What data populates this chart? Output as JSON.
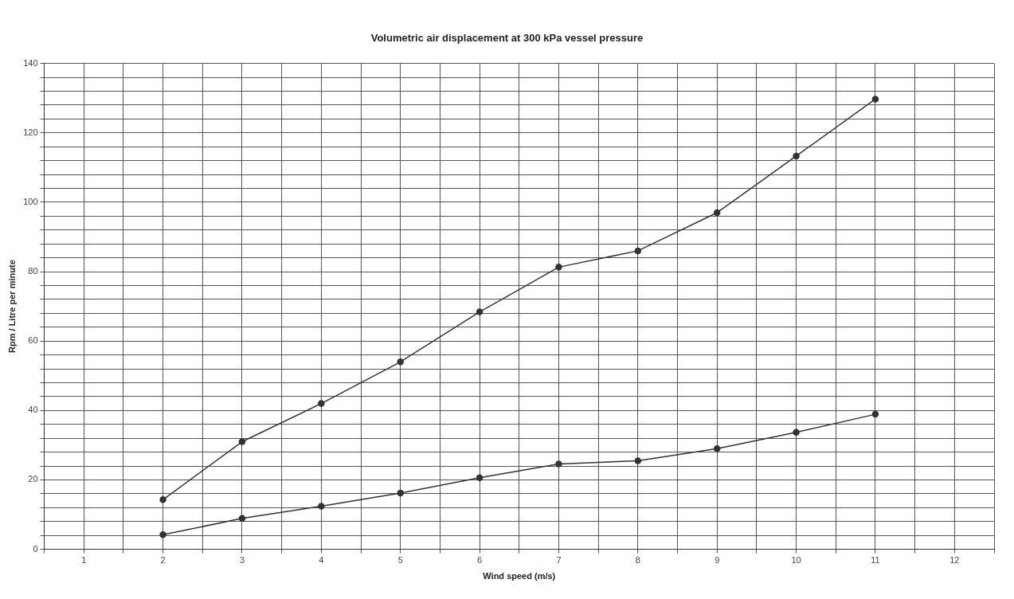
{
  "chart_data": {
    "type": "line",
    "title": "Volumetric air displacement at 300 kPa vessel pressure",
    "xlabel": "Wind speed (m/s)",
    "ylabel": "Rpm / Litre per minute",
    "x": [
      2,
      3,
      4,
      5,
      6,
      7,
      8,
      9,
      10,
      11
    ],
    "series": [
      {
        "color": "#333333",
        "values": [
          14.3,
          31,
          42,
          54,
          68.4,
          81.3,
          86,
          97,
          113.3,
          129.7
        ]
      },
      {
        "color": "#333333",
        "values": [
          4.2,
          8.9,
          12.4,
          16.2,
          20.6,
          24.6,
          25.5,
          29,
          33.7,
          38.9
        ]
      }
    ],
    "xlim": [
      0.5,
      12.5
    ],
    "xticks": [
      {
        "value": 0.5,
        "label": null
      },
      1,
      {
        "value": 1.5,
        "label": null
      },
      2,
      {
        "value": 2.5,
        "label": null
      },
      3,
      {
        "value": 3.5,
        "label": null
      },
      4,
      {
        "value": 4.5,
        "label": null
      },
      5,
      {
        "value": 5.5,
        "label": null
      },
      6,
      {
        "value": 6.5,
        "label": null
      },
      7,
      {
        "value": 7.5,
        "label": null
      },
      8,
      {
        "value": 8.5,
        "label": null
      },
      9,
      {
        "value": 9.5,
        "label": null
      },
      10,
      {
        "value": 10.5,
        "label": null
      },
      11,
      {
        "value": 11.5,
        "label": null
      },
      12,
      {
        "value": 12.5,
        "label": null
      }
    ],
    "ylim": [
      0,
      140
    ],
    "yticks": [
      0,
      {
        "value": 4,
        "label": null
      },
      {
        "value": 8,
        "label": null
      },
      {
        "value": 12,
        "label": null
      },
      {
        "value": 16,
        "label": null
      },
      20,
      {
        "value": 24,
        "label": null
      },
      {
        "value": 28,
        "label": null
      },
      {
        "value": 32,
        "label": null
      },
      {
        "value": 36,
        "label": null
      },
      40,
      {
        "value": 44,
        "label": null
      },
      {
        "value": 48,
        "label": null
      },
      {
        "value": 52,
        "label": null
      },
      {
        "value": 56,
        "label": null
      },
      60,
      {
        "value": 64,
        "label": null
      },
      {
        "value": 68,
        "label": null
      },
      {
        "value": 72,
        "label": null
      },
      {
        "value": 76,
        "label": null
      },
      80,
      {
        "value": 84,
        "label": null
      },
      {
        "value": 88,
        "label": null
      },
      {
        "value": 92,
        "label": null
      },
      {
        "value": 96,
        "label": null
      },
      100,
      {
        "value": 104,
        "label": null
      },
      {
        "value": 108,
        "label": null
      },
      {
        "value": 112,
        "label": null
      },
      {
        "value": 116,
        "label": null
      },
      120,
      {
        "value": 124,
        "label": null
      },
      {
        "value": 128,
        "label": null
      },
      {
        "value": 132,
        "label": null
      },
      {
        "value": 136,
        "label": null
      },
      140
    ],
    "grid": true,
    "legend": false,
    "marker": "circle",
    "line_style": "solid"
  }
}
